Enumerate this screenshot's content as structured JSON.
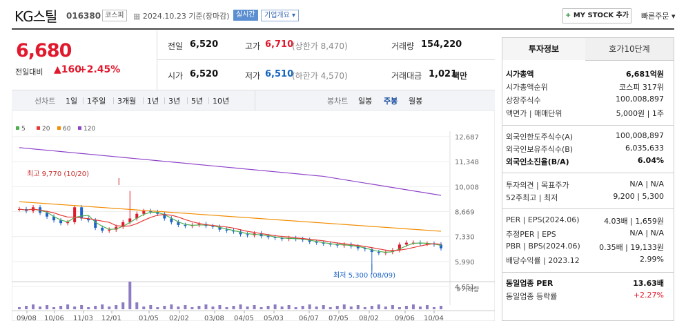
{
  "header": {
    "name": "KG스틸",
    "code": "016380",
    "market": "코스피",
    "date": "2024.10.23 기준(장마감)",
    "live": "실시간",
    "corp_info": "기업개요",
    "mystock": "MY STOCK 추가",
    "quick_order": "빠른주문"
  },
  "price": {
    "current": "6,680",
    "change_label": "전일대비",
    "change": "160",
    "percent": "+2.45%"
  },
  "quote": {
    "prev_label": "전일",
    "prev": "6,520",
    "high_label": "고가",
    "high": "6,710",
    "upper": "(상한가 8,470)",
    "volume_label": "거래량",
    "volume": "154,220",
    "open_label": "시가",
    "open": "6,520",
    "low_label": "저가",
    "low": "6,510",
    "lower": "(하한가 4,570)",
    "amount_label": "거래대금",
    "amount": "1,021",
    "amount_unit": "백만"
  },
  "periods": {
    "line_label": "선차트",
    "items": [
      "1일",
      "1주일",
      "3개월",
      "1년",
      "3년",
      "5년",
      "10년"
    ],
    "candle_label": "봉차트",
    "candles": [
      "일봉",
      "주봉",
      "월봉"
    ]
  },
  "chart_data": {
    "type": "candlestick",
    "legend": [
      "5",
      "20",
      "60",
      "120"
    ],
    "legend_colors": [
      "#4caf50",
      "#e53935",
      "#f28c00",
      "#8e44c9"
    ],
    "y_ticks": [
      "12,687",
      "11,348",
      "10,008",
      "8,669",
      "7,330",
      "5,990",
      "4,651"
    ],
    "x_ticks": [
      "09/08",
      "10/06",
      "11/03",
      "12/01",
      "01/05",
      "02/02",
      "03/08",
      "04/05",
      "05/03",
      "06/07",
      "07/05",
      "08/02",
      "09/06",
      "10/04"
    ],
    "high_note": "최고 9,770 (10/20)",
    "low_note": "최저 5,300 (08/09)",
    "volume_label": "거래량",
    "ylim": [
      4651,
      12687
    ]
  },
  "panel": {
    "tab_active": "투자정보",
    "tab_other": "호가10단계",
    "rows1": [
      {
        "label": "시가총액",
        "value": "6,681억원"
      },
      {
        "label": "시가총액순위",
        "value": "코스피 317위"
      },
      {
        "label": "상장주식수",
        "value": "100,008,897"
      },
      {
        "label": "액면가 | 매매단위",
        "value": "5,000원 | 1주"
      }
    ],
    "rows2": [
      {
        "label": "외국인한도주식수(A)",
        "value": "100,008,897"
      },
      {
        "label": "외국인보유주식수(B)",
        "value": "6,035,633"
      },
      {
        "label": "외국인소진율(B/A)",
        "value": "6.04%"
      }
    ],
    "rows3": [
      {
        "label": "투자의견 | 목표주가",
        "value": "N/A | N/A"
      },
      {
        "label": "52주최고 | 최저",
        "value": "9,200 | 5,300"
      }
    ],
    "rows4": [
      {
        "label": "PER | EPS(2024.06)",
        "value": "4.03배 | 1,659원"
      },
      {
        "label": "추정PER | EPS",
        "value": "N/A | N/A"
      },
      {
        "label": "PBR | BPS(2024.06)",
        "value": "0.35배 | 19,133원"
      },
      {
        "label": "배당수익률 | 2023.12",
        "value": "2.99%"
      }
    ],
    "rows5": [
      {
        "label": "동일업종 PER",
        "value": "13.63배"
      },
      {
        "label": "동일업종 등락률",
        "value": "+2.27%"
      }
    ]
  }
}
